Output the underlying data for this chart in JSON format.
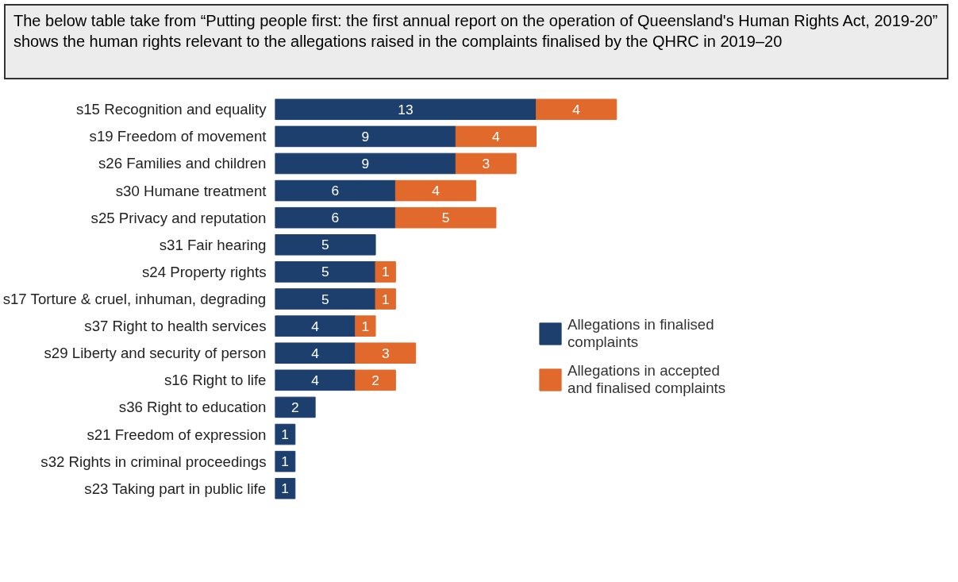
{
  "chart_data": {
    "type": "bar",
    "orientation": "horizontal",
    "stacked": true,
    "data_labels": true,
    "grid": false,
    "legend": "right",
    "title": "The below table take from “Putting people first: the first annual report on the operation of Queensland's Human Rights Act, 2019-20” shows the human rights relevant to the allegations raised in the complaints finalised by the QHRC in 2019–20",
    "categories": [
      "s15 Recognition and equality",
      "s19 Freedom of movement",
      "s26 Families and children",
      "s30 Humane treatment",
      "s25 Privacy and reputation",
      "s31 Fair hearing",
      "s24 Property rights",
      "s17 Torture & cruel, inhuman, degrading",
      "s37 Right to health services",
      "s29 Liberty and security of person",
      "s16 Right to life",
      "s36 Right to education",
      "s21 Freedom of expression",
      "s32 Rights in criminal proceedings",
      "s23 Taking part in public life"
    ],
    "series": [
      {
        "name": "Allegations in finalised complaints",
        "color": "#1d3f6e",
        "values": [
          13,
          9,
          9,
          6,
          6,
          5,
          5,
          5,
          4,
          4,
          4,
          2,
          1,
          1,
          1
        ]
      },
      {
        "name": "Allegations in accepted and finalised complaints",
        "color": "#e0692b",
        "values": [
          4,
          4,
          3,
          4,
          5,
          null,
          1,
          1,
          1,
          3,
          2,
          null,
          null,
          null,
          null
        ]
      }
    ]
  }
}
